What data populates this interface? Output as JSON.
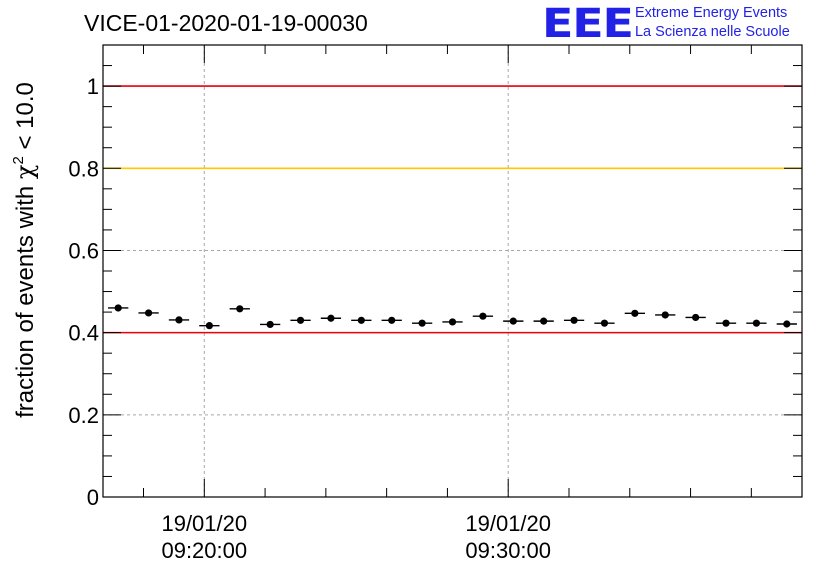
{
  "header": {
    "title": "VICE-01-2020-01-19-00030"
  },
  "logo": {
    "mark": "EEE",
    "line1": "Extreme Energy Events",
    "line2": "La Scienza nelle Scuole",
    "color": "#2222e6"
  },
  "chart_data": {
    "type": "scatter",
    "title": "VICE-01-2020-01-19-00030",
    "ylabel_prefix": "fraction of events with ",
    "ylabel_symbol": "χ",
    "ylabel_sup": "2",
    "ylabel_suffix": " < 10.0",
    "xlabel": "",
    "ylim": [
      0,
      1.1
    ],
    "yticks": [
      0,
      0.2,
      0.4,
      0.6,
      0.8,
      1
    ],
    "ytick_labels": [
      "0",
      "0.2",
      "0.4",
      "0.6",
      "0.8",
      "1"
    ],
    "x_unit": "minutes after 09:16:40 on 19/01/20",
    "xlim": [
      0,
      23
    ],
    "xticks": [
      {
        "x": 3.333,
        "date": "19/01/20",
        "time": "09:20:00"
      },
      {
        "x": 13.333,
        "date": "19/01/20",
        "time": "09:30:00"
      }
    ],
    "grid": true,
    "reference_lines": [
      {
        "y": 1.0,
        "color": "#e8000b"
      },
      {
        "y": 0.8,
        "color": "#ffc800"
      },
      {
        "y": 0.4,
        "color": "#e8000b"
      }
    ],
    "bin_width": 0.667,
    "points": [
      {
        "x": 0.5,
        "y": 0.46,
        "err": 0.008
      },
      {
        "x": 1.5,
        "y": 0.448,
        "err": 0.008
      },
      {
        "x": 2.5,
        "y": 0.431,
        "err": 0.008
      },
      {
        "x": 3.5,
        "y": 0.417,
        "err": 0.008
      },
      {
        "x": 4.5,
        "y": 0.458,
        "err": 0.008
      },
      {
        "x": 5.5,
        "y": 0.42,
        "err": 0.008
      },
      {
        "x": 6.5,
        "y": 0.43,
        "err": 0.008
      },
      {
        "x": 7.5,
        "y": 0.435,
        "err": 0.008
      },
      {
        "x": 8.5,
        "y": 0.43,
        "err": 0.008
      },
      {
        "x": 9.5,
        "y": 0.43,
        "err": 0.008
      },
      {
        "x": 10.5,
        "y": 0.423,
        "err": 0.008
      },
      {
        "x": 11.5,
        "y": 0.426,
        "err": 0.008
      },
      {
        "x": 12.5,
        "y": 0.44,
        "err": 0.008
      },
      {
        "x": 13.5,
        "y": 0.428,
        "err": 0.008
      },
      {
        "x": 14.5,
        "y": 0.428,
        "err": 0.008
      },
      {
        "x": 15.5,
        "y": 0.43,
        "err": 0.008
      },
      {
        "x": 16.5,
        "y": 0.423,
        "err": 0.008
      },
      {
        "x": 17.5,
        "y": 0.447,
        "err": 0.008
      },
      {
        "x": 18.5,
        "y": 0.443,
        "err": 0.008
      },
      {
        "x": 19.5,
        "y": 0.437,
        "err": 0.008
      },
      {
        "x": 20.5,
        "y": 0.423,
        "err": 0.008
      },
      {
        "x": 21.5,
        "y": 0.423,
        "err": 0.008
      },
      {
        "x": 22.5,
        "y": 0.421,
        "err": 0.008
      }
    ]
  }
}
